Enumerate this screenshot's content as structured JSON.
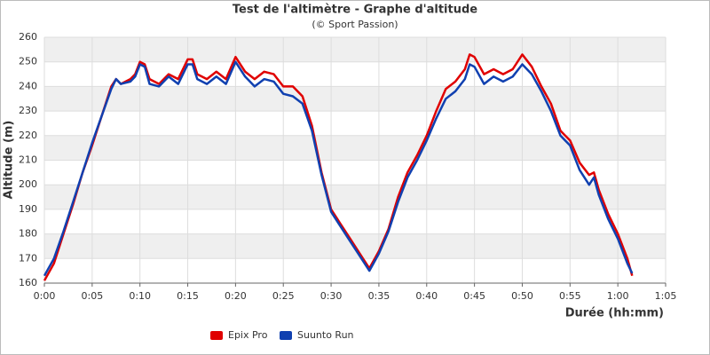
{
  "chart_data": {
    "type": "line",
    "title": "Test de l'altimètre - Graphe d'altitude",
    "subtitle": "(© Sport Passion)",
    "x_label": "Durée (hh:mm)",
    "y_label": "Altitude (m)",
    "x": [
      0,
      1,
      2,
      3,
      4,
      5,
      6,
      7,
      7.5,
      8,
      9,
      9.5,
      10,
      10.5,
      11,
      12,
      13,
      14,
      15,
      15.5,
      16,
      17,
      18,
      19,
      20,
      21,
      22,
      23,
      24,
      25,
      26,
      27,
      28,
      29,
      30,
      31,
      32,
      33,
      34,
      35,
      36,
      37,
      38,
      39,
      40,
      41,
      42,
      43,
      44,
      44.5,
      45,
      46,
      47,
      48,
      49,
      50,
      51,
      52,
      53,
      54,
      55,
      56,
      57,
      57.5,
      58,
      59,
      60,
      61,
      61.5
    ],
    "series": [
      {
        "name": "Epix Pro",
        "color": "#e00000",
        "values": [
          161,
          168,
          180,
          192,
          205,
          216,
          228,
          240,
          243,
          241,
          243,
          245,
          250,
          249,
          243,
          241,
          245,
          243,
          251,
          251,
          245,
          243,
          246,
          243,
          252,
          246,
          243,
          246,
          245,
          240,
          240,
          236,
          224,
          205,
          190,
          184,
          178,
          172,
          166,
          173,
          182,
          195,
          205,
          212,
          220,
          230,
          239,
          242,
          247,
          253,
          252,
          245,
          247,
          245,
          247,
          253,
          248,
          240,
          233,
          222,
          218,
          209,
          204,
          205,
          198,
          188,
          180,
          170,
          163
        ]
      },
      {
        "name": "Suunto Run",
        "color": "#1040b0",
        "values": [
          163,
          170,
          181,
          193,
          205,
          217,
          228,
          239,
          243,
          241,
          242,
          244,
          249,
          248,
          241,
          240,
          244,
          241,
          249,
          249,
          243,
          241,
          244,
          241,
          250,
          244,
          240,
          243,
          242,
          237,
          236,
          233,
          222,
          204,
          189,
          183,
          177,
          171,
          165,
          172,
          181,
          193,
          203,
          210,
          218,
          227,
          235,
          238,
          243,
          249,
          248,
          241,
          244,
          242,
          244,
          249,
          245,
          238,
          230,
          220,
          216,
          206,
          200,
          203,
          196,
          186,
          178,
          168,
          164
        ]
      }
    ],
    "xlim": [
      0,
      65
    ],
    "ylim": [
      160,
      260
    ],
    "xticks": [
      {
        "value": 0,
        "label": "0:00"
      },
      {
        "value": 5,
        "label": "0:05"
      },
      {
        "value": 10,
        "label": "0:10"
      },
      {
        "value": 15,
        "label": "0:15"
      },
      {
        "value": 20,
        "label": "0:20"
      },
      {
        "value": 25,
        "label": "0:25"
      },
      {
        "value": 30,
        "label": "0:30"
      },
      {
        "value": 35,
        "label": "0:35"
      },
      {
        "value": 40,
        "label": "0:40"
      },
      {
        "value": 45,
        "label": "0:45"
      },
      {
        "value": 50,
        "label": "0:50"
      },
      {
        "value": 55,
        "label": "0:55"
      },
      {
        "value": 60,
        "label": "1:00"
      },
      {
        "value": 65,
        "label": "1:05"
      }
    ],
    "yticks": [
      160,
      170,
      180,
      190,
      200,
      210,
      220,
      230,
      240,
      250,
      260
    ],
    "grid": true,
    "legend": "bottom"
  }
}
